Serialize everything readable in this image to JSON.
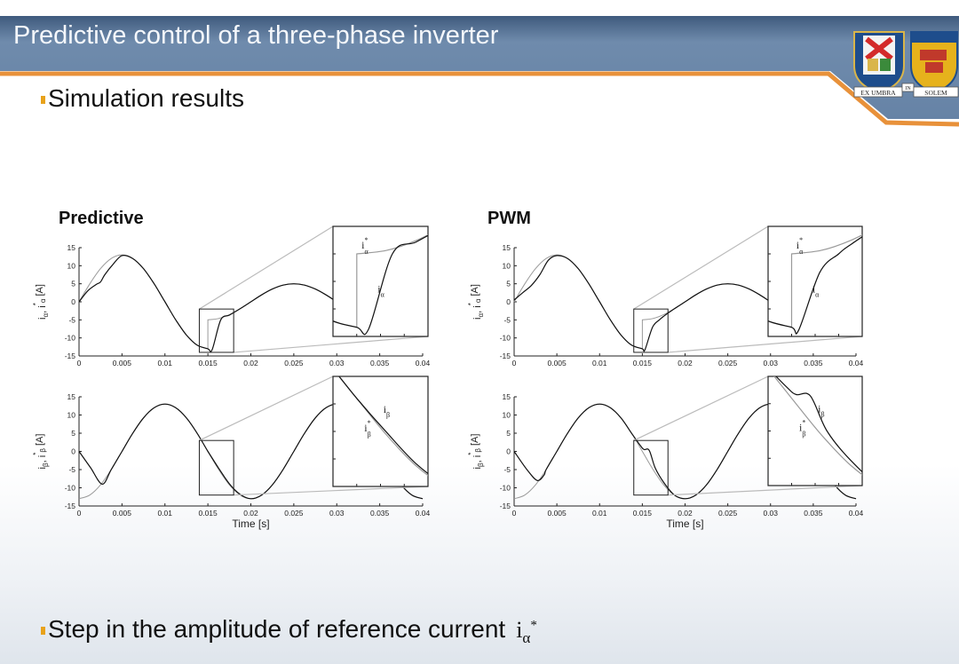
{
  "slide": {
    "title": "Predictive control of a three-phase inverter",
    "bullet_1": "Simulation results",
    "bullet_2": "Step in the amplitude of reference current",
    "bullet_2_symbol": {
      "base": "i",
      "sub": "α",
      "sup": "*"
    },
    "colors": {
      "header": "#5d7a9d",
      "accent_orange": "#e8913a",
      "bullet": "#e8a21a"
    }
  },
  "logo": {
    "ribbon_left": "EX UMBRA",
    "ribbon_mid": "IN",
    "ribbon_right": "SOLEM"
  },
  "chart_data": [
    {
      "id": "predictive-alpha",
      "type": "line",
      "title": "Predictive",
      "xlim": [
        0,
        0.04
      ],
      "ylim": [
        -15,
        15
      ],
      "xticks": [
        "0",
        "0.005",
        "0.01",
        "0.015",
        "0.02",
        "0.025",
        "0.03",
        "0.035",
        "0.04"
      ],
      "yticks": [
        "15",
        "10",
        "5",
        "0",
        "-5",
        "-10",
        "-15"
      ],
      "ylabel": {
        "a": "i",
        "a_sub": "α",
        "sep": ", ",
        "b": "i",
        "b_sub": "α",
        "b_sup": "*",
        "unit": " [A]"
      },
      "xlabel": "",
      "zoom_window": {
        "x": [
          0.014,
          0.018
        ],
        "y": [
          -14,
          -2
        ]
      },
      "series": [
        {
          "name": "i_α*",
          "label": {
            "base": "i",
            "sub": "α",
            "sup": "*"
          },
          "color": "#9a9a9a",
          "x": [
            0,
            0.00125,
            0.0025,
            0.00375,
            0.005,
            0.00625,
            0.0075,
            0.00875,
            0.01,
            0.01125,
            0.0125,
            0.01375,
            0.015,
            0.015,
            0.01625,
            0.0175,
            0.01875,
            0.02,
            0.02125,
            0.0225,
            0.02375,
            0.025,
            0.02625,
            0.0275,
            0.02875,
            0.03,
            0.03125,
            0.0325,
            0.03375,
            0.035,
            0.03625,
            0.0375,
            0.03875,
            0.04
          ],
          "y": [
            0,
            4.97,
            9.19,
            12.01,
            13,
            12.01,
            9.19,
            4.97,
            0,
            -4.97,
            -9.19,
            -12.01,
            -13,
            -5,
            -4.62,
            -3.54,
            -1.91,
            0,
            1.91,
            3.54,
            4.62,
            5,
            4.62,
            3.54,
            1.91,
            0,
            -1.91,
            -3.54,
            -4.62,
            -5,
            -4.62,
            -3.54,
            -1.91,
            0
          ]
        },
        {
          "name": "i_α",
          "label": {
            "base": "i",
            "sub": "α",
            "sup": ""
          },
          "color": "#111111",
          "x": [
            0,
            0.001,
            0.002,
            0.0025,
            0.003,
            0.004,
            0.005,
            0.00625,
            0.0075,
            0.00875,
            0.01,
            0.01125,
            0.0125,
            0.01375,
            0.015,
            0.0155,
            0.0165,
            0.0175,
            0.01875,
            0.02,
            0.02125,
            0.0225,
            0.02375,
            0.025,
            0.02625,
            0.0275,
            0.02875,
            0.03,
            0.03125,
            0.0325,
            0.03375,
            0.035,
            0.03625,
            0.0375,
            0.03875,
            0.04
          ],
          "y": [
            0,
            3,
            4.8,
            5.5,
            7.5,
            10.5,
            12.8,
            12.01,
            9.19,
            4.97,
            0,
            -4.97,
            -9.19,
            -12.01,
            -13,
            -13.2,
            -5,
            -3.7,
            -1.91,
            0,
            1.91,
            3.54,
            4.62,
            5,
            4.62,
            3.54,
            1.91,
            0,
            -1.91,
            -3.54,
            -4.62,
            -5,
            -4.62,
            -3.54,
            -1.91,
            0
          ]
        }
      ]
    },
    {
      "id": "predictive-beta",
      "type": "line",
      "title": "",
      "xlim": [
        0,
        0.04
      ],
      "ylim": [
        -15,
        15
      ],
      "xticks": [
        "0",
        "0.005",
        "0.01",
        "0.015",
        "0.02",
        "0.025",
        "0.03",
        "0.035",
        "0.04"
      ],
      "yticks": [
        "15",
        "10",
        "5",
        "0",
        "-5",
        "-10",
        "-15"
      ],
      "ylabel": {
        "a": "i",
        "a_sub": "β",
        "sep": ", ",
        "b": "i",
        "b_sub": "β",
        "b_sup": "*",
        "unit": " [A]"
      },
      "xlabel": "Time [s]",
      "zoom_window": {
        "x": [
          0.014,
          0.018
        ],
        "y": [
          -12,
          3
        ]
      },
      "series": [
        {
          "name": "i_β*",
          "label": {
            "base": "i",
            "sub": "β",
            "sup": "*"
          },
          "color": "#9a9a9a",
          "x": [
            0,
            0.00125,
            0.0025,
            0.00375,
            0.005,
            0.00625,
            0.0075,
            0.00875,
            0.01,
            0.01125,
            0.0125,
            0.01375,
            0.015,
            0.01625,
            0.0175,
            0.01875,
            0.02,
            0.02125,
            0.0225,
            0.02375,
            0.025,
            0.02625,
            0.0275,
            0.02875,
            0.03,
            0.03125,
            0.0325,
            0.03375,
            0.035,
            0.03625,
            0.0375,
            0.03875,
            0.04
          ],
          "y": [
            -13,
            -12.01,
            -9.19,
            -4.97,
            0,
            4.97,
            9.19,
            12.01,
            13,
            12.01,
            9.19,
            4.97,
            0,
            -4.97,
            -9.19,
            -12.01,
            -13,
            -12.01,
            -9.19,
            -4.97,
            0,
            4.97,
            9.19,
            12.01,
            13,
            12.01,
            9.19,
            4.97,
            0,
            -4.97,
            -9.19,
            -12.01,
            -13
          ]
        },
        {
          "name": "i_β",
          "label": {
            "base": "i",
            "sub": "β",
            "sup": ""
          },
          "color": "#111111",
          "x": [
            0,
            0.00135,
            0.0027,
            0.00375,
            0.005,
            0.00625,
            0.0075,
            0.00875,
            0.01,
            0.01125,
            0.0125,
            0.01375,
            0.015,
            0.01625,
            0.0175,
            0.01875,
            0.02,
            0.02125,
            0.0225,
            0.02375,
            0.025,
            0.02625,
            0.0275,
            0.02875,
            0.03,
            0.03125,
            0.0325,
            0.03375,
            0.035,
            0.03625,
            0.0375,
            0.03875,
            0.04
          ],
          "y": [
            0,
            -4.5,
            -9,
            -4.97,
            0,
            4.97,
            9.19,
            12.01,
            13,
            12.01,
            9.19,
            4.97,
            0,
            -4.6,
            -8.9,
            -11.8,
            -13,
            -12.01,
            -9.19,
            -4.97,
            0,
            4.97,
            9.19,
            12.01,
            13,
            12.01,
            9.19,
            4.97,
            0,
            -4.97,
            -9.19,
            -12.01,
            -13
          ]
        }
      ]
    },
    {
      "id": "pwm-alpha",
      "type": "line",
      "title": "PWM",
      "xlim": [
        0,
        0.04
      ],
      "ylim": [
        -15,
        15
      ],
      "xticks": [
        "0",
        "0.005",
        "0.01",
        "0.015",
        "0.02",
        "0.025",
        "0.03",
        "0.035",
        "0.04"
      ],
      "yticks": [
        "15",
        "10",
        "5",
        "0",
        "-5",
        "-10",
        "-15"
      ],
      "ylabel": {
        "a": "i",
        "a_sub": "α",
        "sep": ", ",
        "b": "i",
        "b_sub": "α",
        "b_sup": "*",
        "unit": " [A]"
      },
      "xlabel": "",
      "zoom_window": {
        "x": [
          0.014,
          0.018
        ],
        "y": [
          -14,
          -2
        ]
      },
      "series": [
        {
          "name": "i_α*",
          "label": {
            "base": "i",
            "sub": "α",
            "sup": "*"
          },
          "color": "#9a9a9a",
          "x": [
            0,
            0.00125,
            0.0025,
            0.00375,
            0.005,
            0.00625,
            0.0075,
            0.00875,
            0.01,
            0.01125,
            0.0125,
            0.01375,
            0.015,
            0.015,
            0.01625,
            0.0175,
            0.01875,
            0.02,
            0.02125,
            0.0225,
            0.02375,
            0.025,
            0.02625,
            0.0275,
            0.02875,
            0.03,
            0.03125,
            0.0325,
            0.03375,
            0.035,
            0.03625,
            0.0375,
            0.03875,
            0.04
          ],
          "y": [
            0,
            4.97,
            9.19,
            12.01,
            13,
            12.01,
            9.19,
            4.97,
            0,
            -4.97,
            -9.19,
            -12.01,
            -13,
            -5,
            -4.62,
            -3.54,
            -1.91,
            0,
            1.91,
            3.54,
            4.62,
            5,
            4.62,
            3.54,
            1.91,
            0,
            -1.91,
            -3.54,
            -4.62,
            -5,
            -4.62,
            -3.54,
            -1.91,
            0
          ]
        },
        {
          "name": "i_α",
          "label": {
            "base": "i",
            "sub": "α",
            "sup": ""
          },
          "color": "#111111",
          "x": [
            0,
            0.001,
            0.002,
            0.003,
            0.004,
            0.005,
            0.00625,
            0.0075,
            0.00875,
            0.01,
            0.01125,
            0.0125,
            0.01375,
            0.015,
            0.0153,
            0.0162,
            0.017,
            0.0175,
            0.01875,
            0.02,
            0.02125,
            0.0225,
            0.02375,
            0.025,
            0.02625,
            0.0275,
            0.02875,
            0.03,
            0.03125,
            0.0325,
            0.03375,
            0.035,
            0.03625,
            0.0375,
            0.03875,
            0.04
          ],
          "y": [
            0.5,
            2.5,
            4.5,
            7.5,
            11.5,
            12.8,
            12.01,
            9.19,
            4.97,
            0,
            -4.97,
            -9.19,
            -12.01,
            -13,
            -13.3,
            -7,
            -5,
            -4,
            -1.91,
            0,
            1.91,
            3.54,
            4.62,
            5,
            4.62,
            3.54,
            1.91,
            0,
            -1.91,
            -3.54,
            -4.62,
            -5,
            -4.62,
            -3.54,
            -1.91,
            0
          ]
        }
      ]
    },
    {
      "id": "pwm-beta",
      "type": "line",
      "title": "",
      "xlim": [
        0,
        0.04
      ],
      "ylim": [
        -15,
        15
      ],
      "xticks": [
        "0",
        "0.005",
        "0.01",
        "0.015",
        "0.02",
        "0.025",
        "0.03",
        "0.035",
        "0.04"
      ],
      "yticks": [
        "15",
        "10",
        "5",
        "0",
        "-5",
        "-10",
        "-15"
      ],
      "ylabel": {
        "a": "i",
        "a_sub": "β",
        "sep": ", ",
        "b": "i",
        "b_sub": "β",
        "b_sup": "*",
        "unit": " [A]"
      },
      "xlabel": "Time [s]",
      "zoom_window": {
        "x": [
          0.014,
          0.018
        ],
        "y": [
          -12,
          3
        ]
      },
      "series": [
        {
          "name": "i_β*",
          "label": {
            "base": "i",
            "sub": "β",
            "sup": "*"
          },
          "color": "#9a9a9a",
          "x": [
            0,
            0.00125,
            0.0025,
            0.00375,
            0.005,
            0.00625,
            0.0075,
            0.00875,
            0.01,
            0.01125,
            0.0125,
            0.01375,
            0.015,
            0.01625,
            0.0175,
            0.01875,
            0.02,
            0.02125,
            0.0225,
            0.02375,
            0.025,
            0.02625,
            0.0275,
            0.02875,
            0.03,
            0.03125,
            0.0325,
            0.03375,
            0.035,
            0.03625,
            0.0375,
            0.03875,
            0.04
          ],
          "y": [
            -13,
            -12.01,
            -9.19,
            -4.97,
            0,
            4.97,
            9.19,
            12.01,
            13,
            12.01,
            9.19,
            4.97,
            0,
            -4.97,
            -9.19,
            -12.01,
            -13,
            -12.01,
            -9.19,
            -4.97,
            0,
            4.97,
            9.19,
            12.01,
            13,
            12.01,
            9.19,
            4.97,
            0,
            -4.97,
            -9.19,
            -12.01,
            -13
          ]
        },
        {
          "name": "i_β",
          "label": {
            "base": "i",
            "sub": "β",
            "sup": ""
          },
          "color": "#111111",
          "x": [
            0,
            0.0015,
            0.0027,
            0.0035,
            0.00375,
            0.005,
            0.00625,
            0.0075,
            0.00875,
            0.01,
            0.01125,
            0.0125,
            0.01375,
            0.0148,
            0.0152,
            0.0158,
            0.0165,
            0.0175,
            0.01875,
            0.02,
            0.02125,
            0.0225,
            0.02375,
            0.025,
            0.02625,
            0.0275,
            0.02875,
            0.03,
            0.03125,
            0.0325,
            0.03375,
            0.035,
            0.03625,
            0.0375,
            0.03875,
            0.04
          ],
          "y": [
            0,
            -5,
            -8,
            -6.5,
            -4.97,
            0,
            4.97,
            9.19,
            12.01,
            13,
            12.01,
            9.19,
            4.97,
            1.5,
            0.5,
            0.3,
            -4.5,
            -8.5,
            -12.01,
            -13,
            -12.01,
            -9.19,
            -4.97,
            0,
            4.97,
            9.19,
            12.01,
            13,
            12.01,
            9.19,
            4.97,
            0,
            -4.97,
            -9.19,
            -12.01,
            -13
          ]
        }
      ]
    }
  ]
}
